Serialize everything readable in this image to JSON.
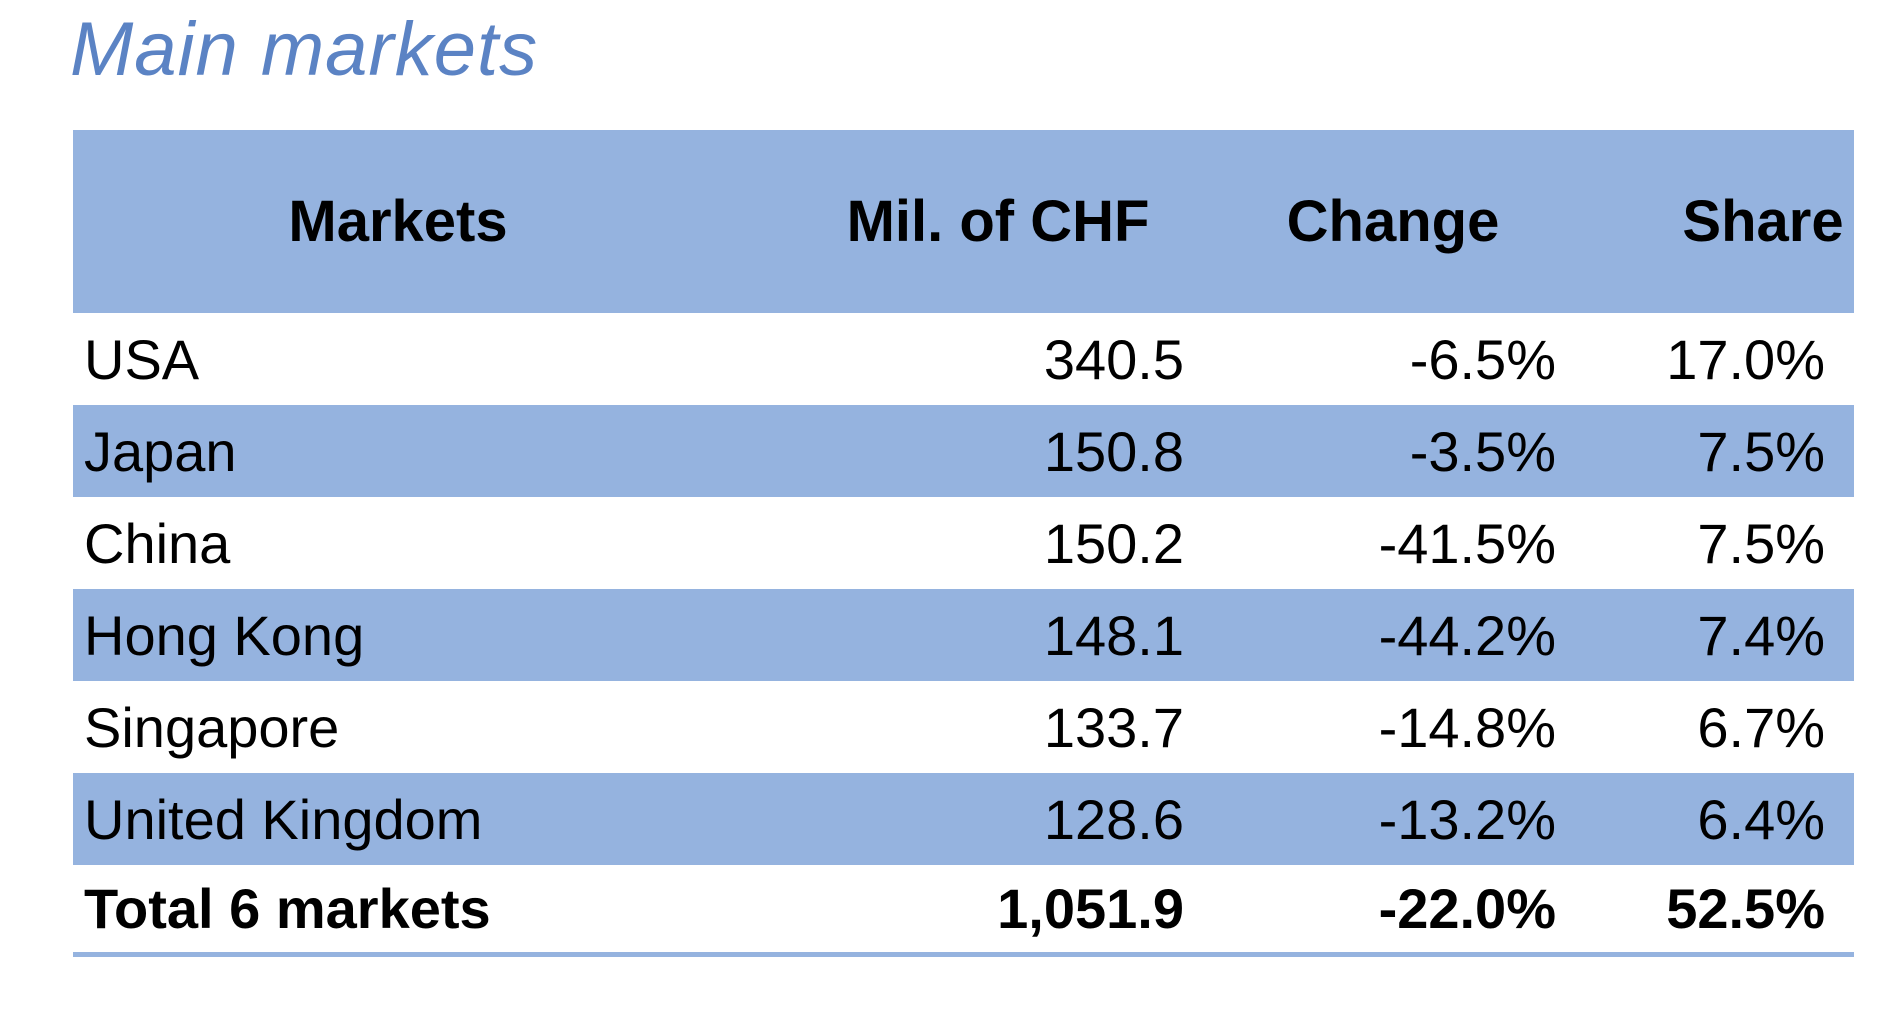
{
  "title": "Main markets",
  "table": {
    "headers": {
      "market": "Markets",
      "value": "Mil. of CHF",
      "change": "Change",
      "share": "Share"
    },
    "rows": [
      {
        "market": "USA",
        "value": "340.5",
        "change": "-6.5%",
        "share": "17.0%"
      },
      {
        "market": "Japan",
        "value": "150.8",
        "change": "-3.5%",
        "share": "7.5%"
      },
      {
        "market": "China",
        "value": "150.2",
        "change": "-41.5%",
        "share": "7.5%"
      },
      {
        "market": "Hong Kong",
        "value": "148.1",
        "change": "-44.2%",
        "share": "7.4%"
      },
      {
        "market": "Singapore",
        "value": "133.7",
        "change": "-14.8%",
        "share": "6.7%"
      },
      {
        "market": "United Kingdom",
        "value": "128.6",
        "change": "-13.2%",
        "share": "6.4%"
      }
    ],
    "total": {
      "market": "Total 6 markets",
      "value": "1,051.9",
      "change": "-22.0%",
      "share": "52.5%"
    }
  },
  "colors": {
    "title": "#5b83c4",
    "band": "#95b3df"
  }
}
